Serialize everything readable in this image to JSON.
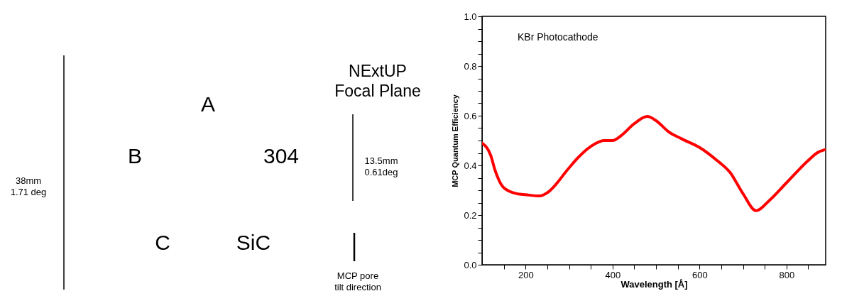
{
  "chart_data": [
    {
      "type": "other",
      "title": "NExtUP\nFocal Plane",
      "annotations": [
        "A",
        "B",
        "304",
        "C",
        "SiC",
        "38mm\n1.71 deg",
        "13.5mm\n0.61deg",
        "MCP pore\ntilt direction"
      ]
    },
    {
      "type": "line",
      "xlabel": "Wavelength [Å]",
      "ylabel": "MCP Quantum Efficiency",
      "annotations": [
        "KBr Photocathode"
      ],
      "x": [
        100,
        120,
        130,
        150,
        180,
        200,
        233,
        250,
        300,
        320,
        360,
        380,
        400,
        420,
        450,
        480,
        500,
        530,
        560,
        600,
        640,
        670,
        700,
        730,
        760,
        800,
        850,
        870,
        888
      ],
      "series": [
        {
          "color": "#ff0000",
          "values": [
            0.49,
            0.44,
            0.38,
            0.31,
            0.286,
            0.282,
            0.277,
            0.29,
            0.39,
            0.43,
            0.487,
            0.5,
            0.5,
            0.52,
            0.568,
            0.597,
            0.58,
            0.534,
            0.506,
            0.472,
            0.42,
            0.372,
            0.286,
            0.218,
            0.258,
            0.33,
            0.42,
            0.45,
            0.463
          ]
        }
      ],
      "xlim": [
        100,
        890
      ],
      "ylim": [
        0,
        1
      ],
      "xticks": [
        {
          "value": 150,
          "label": null
        },
        200,
        {
          "value": 250,
          "label": null
        },
        {
          "value": 300,
          "label": null
        },
        {
          "value": 350,
          "label": null
        },
        400,
        {
          "value": 450,
          "label": null
        },
        {
          "value": 500,
          "label": null
        },
        {
          "value": 550,
          "label": null
        },
        600,
        {
          "value": 650,
          "label": null
        },
        {
          "value": 700,
          "label": null
        },
        {
          "value": 750,
          "label": null
        },
        800,
        {
          "value": 850,
          "label": null
        }
      ],
      "yticks": [
        {
          "value": 0,
          "label": "0.0"
        },
        {
          "value": 0.05,
          "label": null
        },
        {
          "value": 0.1,
          "label": null
        },
        {
          "value": 0.15,
          "label": null
        },
        0.2,
        {
          "value": 0.25,
          "label": null
        },
        {
          "value": 0.3,
          "label": null
        },
        {
          "value": 0.35,
          "label": null
        },
        0.4,
        {
          "value": 0.45,
          "label": null
        },
        {
          "value": 0.5,
          "label": null
        },
        {
          "value": 0.55,
          "label": null
        },
        0.6,
        {
          "value": 0.65,
          "label": null
        },
        {
          "value": 0.7,
          "label": null
        },
        {
          "value": 0.75,
          "label": null
        },
        0.8,
        {
          "value": 0.85,
          "label": null
        },
        {
          "value": 0.9,
          "label": null
        },
        {
          "value": 0.95,
          "label": null
        },
        {
          "value": 1,
          "label": "1.0"
        }
      ],
      "grid": false,
      "marker": "none",
      "line_style": "solid"
    }
  ]
}
